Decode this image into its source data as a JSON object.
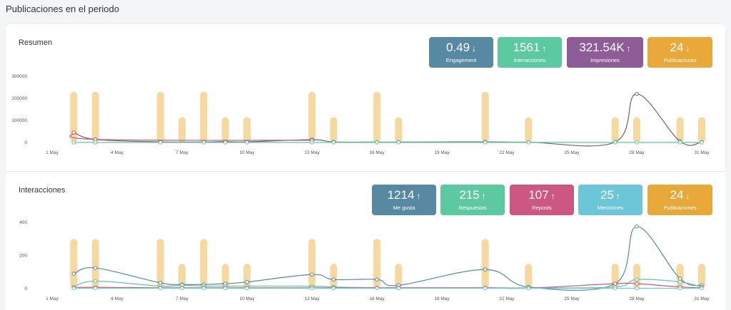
{
  "page_title": "Publicaciones en el periodo",
  "resumen": {
    "title": "Resumen",
    "kpis": [
      {
        "value": "0.49",
        "direction": "down",
        "label": "Engagement",
        "color": "#5789a3"
      },
      {
        "value": "1561",
        "direction": "up",
        "label": "Interacciones",
        "color": "#5cc9a0"
      },
      {
        "value": "321.54K",
        "direction": "up",
        "label": "Impresiones",
        "color": "#8e5c96"
      },
      {
        "value": "24",
        "direction": "down",
        "label": "Publicaciones",
        "color": "#e8a93a"
      }
    ]
  },
  "interacciones": {
    "title": "Interacciones",
    "kpis": [
      {
        "value": "1214",
        "direction": "up",
        "label": "Me gusta",
        "color": "#5789a3"
      },
      {
        "value": "215",
        "direction": "up",
        "label": "Respuestas",
        "color": "#5cc9a0"
      },
      {
        "value": "107",
        "direction": "up",
        "label": "Reposts",
        "color": "#cc5781"
      },
      {
        "value": "25",
        "direction": "up",
        "label": "Menciones",
        "color": "#6dc5d8"
      },
      {
        "value": "24",
        "direction": "down",
        "label": "Publicaciones",
        "color": "#e8a93a"
      }
    ]
  },
  "chart_data": [
    {
      "type": "bar",
      "x_tick_labels": [
        "1 May",
        "4 May",
        "7 May",
        "10 May",
        "13 May",
        "16 May",
        "19 May",
        "22 May",
        "25 May",
        "28 May",
        "31 May"
      ],
      "y_tick_labels": [
        "0",
        "100000",
        "200000",
        "300000"
      ],
      "ylim": [
        0,
        300000
      ],
      "xlim": [
        1,
        31
      ],
      "bar_color": "#f5d9a0",
      "bars": [
        {
          "day": 2,
          "value": 230000
        },
        {
          "day": 3,
          "value": 230000
        },
        {
          "day": 6,
          "value": 230000
        },
        {
          "day": 7,
          "value": 115000
        },
        {
          "day": 8,
          "value": 230000
        },
        {
          "day": 9,
          "value": 115000
        },
        {
          "day": 10,
          "value": 115000
        },
        {
          "day": 13,
          "value": 230000
        },
        {
          "day": 14,
          "value": 115000
        },
        {
          "day": 16,
          "value": 230000
        },
        {
          "day": 17,
          "value": 115000
        },
        {
          "day": 21,
          "value": 230000
        },
        {
          "day": 23,
          "value": 115000
        },
        {
          "day": 27,
          "value": 115000
        },
        {
          "day": 28,
          "value": 115000
        },
        {
          "day": 30,
          "value": 115000
        },
        {
          "day": 31,
          "value": 115000
        }
      ],
      "series": [
        {
          "color": "#666666",
          "points": [
            [
              2,
              45000
            ],
            [
              3,
              14000
            ],
            [
              6,
              3000
            ],
            [
              8,
              2500
            ],
            [
              9,
              4000
            ],
            [
              10,
              3000
            ],
            [
              13,
              13000
            ],
            [
              14,
              3000
            ],
            [
              16,
              2000
            ],
            [
              17,
              2000
            ],
            [
              21,
              3000
            ],
            [
              23,
              1500
            ],
            [
              27,
              2000
            ],
            [
              28,
              220000
            ],
            [
              30,
              5000
            ],
            [
              31,
              2000
            ]
          ]
        },
        {
          "color": "#cc5781",
          "points": [
            [
              2,
              45000
            ],
            [
              3,
              14000
            ],
            [
              13,
              10000
            ]
          ]
        },
        {
          "color": "#5cc9a0",
          "points": [
            [
              2,
              500
            ],
            [
              3,
              500
            ],
            [
              6,
              500
            ],
            [
              8,
              500
            ],
            [
              9,
              500
            ],
            [
              10,
              500
            ],
            [
              13,
              500
            ],
            [
              14,
              500
            ],
            [
              16,
              500
            ],
            [
              17,
              500
            ],
            [
              21,
              500
            ],
            [
              23,
              500
            ],
            [
              27,
              500
            ],
            [
              28,
              500
            ],
            [
              30,
              500
            ],
            [
              31,
              500
            ]
          ]
        }
      ]
    },
    {
      "type": "bar",
      "x_tick_labels": [
        "1 May",
        "4 May",
        "7 May",
        "10 May",
        "13 May",
        "16 May",
        "19 May",
        "22 May",
        "25 May",
        "28 May",
        "31 May"
      ],
      "y_tick_labels": [
        "0",
        "200",
        "400"
      ],
      "ylim": [
        0,
        400
      ],
      "xlim": [
        1,
        31
      ],
      "bar_color": "#f5d9a0",
      "bars": [
        {
          "day": 2,
          "value": 300
        },
        {
          "day": 3,
          "value": 300
        },
        {
          "day": 6,
          "value": 300
        },
        {
          "day": 7,
          "value": 150
        },
        {
          "day": 8,
          "value": 300
        },
        {
          "day": 9,
          "value": 150
        },
        {
          "day": 10,
          "value": 150
        },
        {
          "day": 13,
          "value": 300
        },
        {
          "day": 14,
          "value": 150
        },
        {
          "day": 16,
          "value": 300
        },
        {
          "day": 17,
          "value": 150
        },
        {
          "day": 21,
          "value": 300
        },
        {
          "day": 23,
          "value": 150
        },
        {
          "day": 27,
          "value": 150
        },
        {
          "day": 28,
          "value": 150
        },
        {
          "day": 30,
          "value": 150
        },
        {
          "day": 31,
          "value": 150
        }
      ],
      "series": [
        {
          "color": "#5789a3",
          "points": [
            [
              2,
              90
            ],
            [
              3,
              125
            ],
            [
              6,
              35
            ],
            [
              7,
              25
            ],
            [
              8,
              25
            ],
            [
              9,
              30
            ],
            [
              10,
              40
            ],
            [
              13,
              85
            ],
            [
              14,
              55
            ],
            [
              16,
              55
            ],
            [
              17,
              20
            ],
            [
              21,
              115
            ],
            [
              23,
              10
            ],
            [
              27,
              30
            ],
            [
              28,
              375
            ],
            [
              30,
              60
            ],
            [
              31,
              20
            ]
          ]
        },
        {
          "color": "#5cc9a0",
          "points": [
            [
              2,
              10
            ],
            [
              3,
              45
            ],
            [
              6,
              15
            ],
            [
              7,
              20
            ],
            [
              8,
              15
            ],
            [
              9,
              15
            ],
            [
              10,
              15
            ],
            [
              13,
              15
            ],
            [
              14,
              10
            ],
            [
              16,
              5
            ],
            [
              17,
              5
            ],
            [
              21,
              5
            ],
            [
              23,
              5
            ],
            [
              27,
              10
            ],
            [
              28,
              55
            ],
            [
              30,
              40
            ],
            [
              31,
              10
            ]
          ]
        },
        {
          "color": "#cc5781",
          "points": [
            [
              2,
              5
            ],
            [
              3,
              8
            ],
            [
              6,
              5
            ],
            [
              7,
              5
            ],
            [
              8,
              5
            ],
            [
              9,
              5
            ],
            [
              10,
              5
            ],
            [
              13,
              5
            ],
            [
              14,
              5
            ],
            [
              16,
              5
            ],
            [
              17,
              5
            ],
            [
              21,
              5
            ],
            [
              23,
              3
            ],
            [
              27,
              30
            ],
            [
              28,
              30
            ],
            [
              30,
              10
            ],
            [
              31,
              5
            ]
          ]
        },
        {
          "color": "#6dc5d8",
          "points": [
            [
              2,
              2
            ],
            [
              3,
              2
            ],
            [
              6,
              2
            ],
            [
              7,
              2
            ],
            [
              8,
              2
            ],
            [
              9,
              2
            ],
            [
              10,
              2
            ],
            [
              13,
              2
            ],
            [
              14,
              2
            ],
            [
              16,
              2
            ],
            [
              17,
              2
            ],
            [
              21,
              2
            ],
            [
              23,
              2
            ],
            [
              27,
              2
            ],
            [
              28,
              2
            ],
            [
              30,
              2
            ],
            [
              31,
              2
            ]
          ]
        }
      ]
    }
  ]
}
